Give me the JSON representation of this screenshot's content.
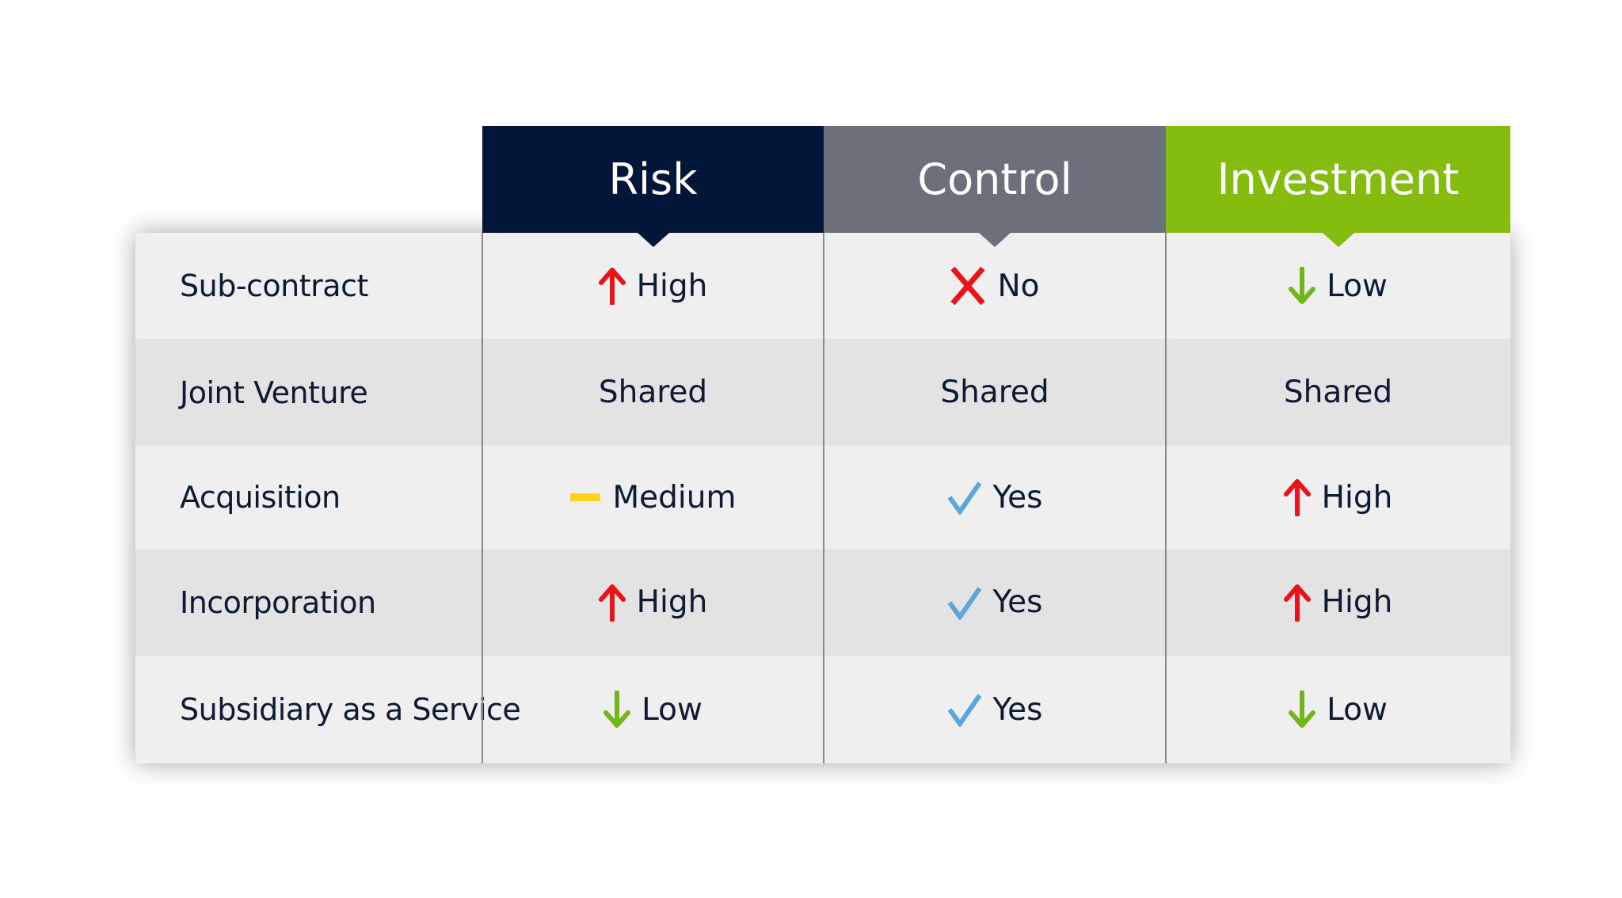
{
  "table": {
    "columns": [
      "Risk",
      "Control",
      "Investment"
    ],
    "rows": [
      {
        "label": "Sub-contract",
        "cells": [
          "High",
          "No",
          "Low"
        ]
      },
      {
        "label": "Joint Venture",
        "cells": [
          "Shared",
          "Shared",
          "Shared"
        ]
      },
      {
        "label": "Acquisition",
        "cells": [
          "Medium",
          "Yes",
          "High"
        ]
      },
      {
        "label": "Incorporation",
        "cells": [
          "High",
          "Yes",
          "High"
        ]
      },
      {
        "label": "Subsidiary as a Service",
        "cells": [
          "Low",
          "Yes",
          "Low"
        ]
      }
    ]
  }
}
